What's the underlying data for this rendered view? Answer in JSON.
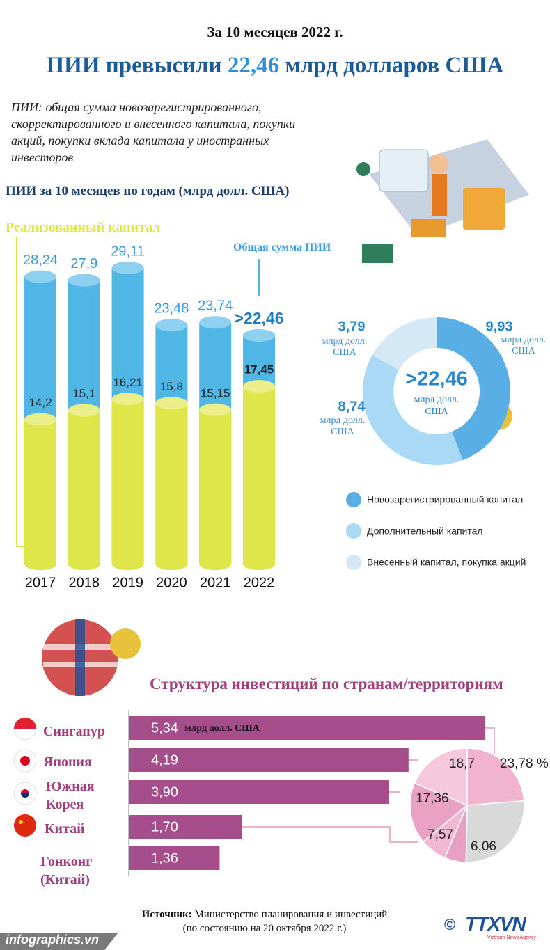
{
  "header": {
    "subtitle": "За 10 месяцев 2022 г.",
    "title": [
      "ПИИ превысили",
      "22,46",
      "млрд долларов США"
    ]
  },
  "definition": "ПИИ: общая сумма новозарегистрированного, скорректированного и внесенного капитала, покупки акций, покупки вклада капитала у иностранных инвесторов",
  "chart_data": [
    {
      "type": "cylinder",
      "title": "ПИИ за 10 месяцев по годам (млрд долл. США)",
      "categories": [
        "2017",
        "2018",
        "2019",
        "2020",
        "2021",
        "2022"
      ],
      "series": [
        {
          "name": "Общая сумма ПИИ",
          "color": "#4fb6e6",
          "values": [
            28.24,
            27.9,
            29.11,
            23.48,
            23.74,
            22.46
          ],
          "value_labels": [
            "28,24",
            "27,9",
            "29,11",
            "23,48",
            "23,74",
            ">22,46"
          ]
        },
        {
          "name": "Реализованный капитал",
          "color": "#dfe64a",
          "values": [
            14.2,
            15.1,
            16.21,
            15.8,
            15.15,
            17.45
          ],
          "value_labels": [
            "14,2",
            "15,1",
            "16,21",
            "15,8",
            "15,15",
            "17,45"
          ]
        }
      ]
    },
    {
      "type": "donut",
      "categories": [
        "Новозарегистрированный капитал",
        "Дополнительный капитал",
        "Внесенный капитал, покупка акций"
      ],
      "values": [
        9.93,
        8.74,
        3.79
      ],
      "value_labels": [
        "9,93",
        "8,74",
        "3,79"
      ],
      "colors": [
        "#5aaee6",
        "#aad9f5",
        "#d4e9f5"
      ],
      "center_label": ">22,46",
      "unit": "млрд долл. США"
    },
    {
      "type": "hbar",
      "title": "Структура инвестиций по странам/территориям",
      "categories": [
        "Сингапур",
        "Япония",
        "Южная Корея",
        "Китай",
        "Гонконг (Китай)"
      ],
      "values": [
        5.34,
        4.19,
        3.9,
        1.7,
        1.36
      ],
      "value_labels": [
        "5,34",
        "4,19",
        "3,90",
        "1,70",
        "1,36"
      ],
      "color": "#a64d8c",
      "unit": "млрд долл. США"
    },
    {
      "type": "pie",
      "values": [
        23.78,
        18.7,
        17.36,
        7.57,
        6.06,
        26.53
      ],
      "value_labels": [
        "23,78 %",
        "18,7",
        "17,36",
        "7,57",
        "6,06",
        null
      ],
      "colors": [
        "#f2b3cf",
        "#f6c8dc",
        "#e9a2c3",
        "#f1b8d1",
        "#e6a0c4",
        "#d9d9d9"
      ]
    }
  ],
  "source": {
    "label": "Источник:",
    "text": "Министерство планирования и инвестиций",
    "note": "(по состоянию на 20 октября 2022 г.)"
  },
  "footer": {
    "site": "infographics.vn",
    "copyright": "©",
    "logo": "TTXVN",
    "agency": "Vietnam News Agency"
  }
}
